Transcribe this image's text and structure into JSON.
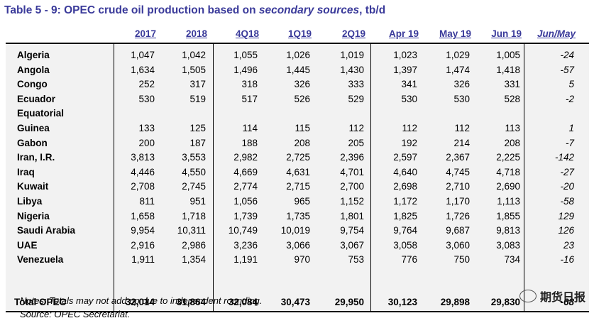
{
  "title": {
    "prefix": "Table 5 - 9: OPEC crude oil production based on ",
    "italic": "secondary sources",
    "suffix": ", tb/d"
  },
  "columns": [
    "2017",
    "2018",
    "4Q18",
    "1Q19",
    "2Q19",
    "Apr 19",
    "May 19",
    "Jun 19",
    "Jun/May"
  ],
  "rows": [
    {
      "name": "Algeria",
      "values": [
        "1,047",
        "1,042",
        "1,055",
        "1,026",
        "1,019",
        "1,023",
        "1,029",
        "1,005",
        "-24"
      ]
    },
    {
      "name": "Angola",
      "values": [
        "1,634",
        "1,505",
        "1,496",
        "1,445",
        "1,430",
        "1,397",
        "1,474",
        "1,418",
        "-57"
      ]
    },
    {
      "name": "Congo",
      "values": [
        "252",
        "317",
        "318",
        "326",
        "333",
        "341",
        "326",
        "331",
        "5"
      ]
    },
    {
      "name": "Ecuador",
      "values": [
        "530",
        "519",
        "517",
        "526",
        "529",
        "530",
        "530",
        "528",
        "-2"
      ]
    },
    {
      "name": "Equatorial",
      "values": [
        "",
        "",
        "",
        "",
        "",
        "",
        "",
        "",
        ""
      ]
    },
    {
      "name": "Guinea",
      "values": [
        "133",
        "125",
        "114",
        "115",
        "112",
        "112",
        "112",
        "113",
        "1"
      ]
    },
    {
      "name": "Gabon",
      "values": [
        "200",
        "187",
        "188",
        "208",
        "205",
        "192",
        "214",
        "208",
        "-7"
      ]
    },
    {
      "name": "Iran, I.R.",
      "values": [
        "3,813",
        "3,553",
        "2,982",
        "2,725",
        "2,396",
        "2,597",
        "2,367",
        "2,225",
        "-142"
      ]
    },
    {
      "name": "Iraq",
      "values": [
        "4,446",
        "4,550",
        "4,669",
        "4,631",
        "4,701",
        "4,640",
        "4,745",
        "4,718",
        "-27"
      ]
    },
    {
      "name": "Kuwait",
      "values": [
        "2,708",
        "2,745",
        "2,774",
        "2,715",
        "2,700",
        "2,698",
        "2,710",
        "2,690",
        "-20"
      ]
    },
    {
      "name": "Libya",
      "values": [
        "811",
        "951",
        "1,056",
        "965",
        "1,152",
        "1,172",
        "1,170",
        "1,113",
        "-58"
      ]
    },
    {
      "name": "Nigeria",
      "values": [
        "1,658",
        "1,718",
        "1,739",
        "1,735",
        "1,801",
        "1,825",
        "1,726",
        "1,855",
        "129"
      ]
    },
    {
      "name": "Saudi Arabia",
      "values": [
        "9,954",
        "10,311",
        "10,749",
        "10,019",
        "9,754",
        "9,764",
        "9,687",
        "9,813",
        "126"
      ]
    },
    {
      "name": "UAE",
      "values": [
        "2,916",
        "2,986",
        "3,236",
        "3,066",
        "3,067",
        "3,058",
        "3,060",
        "3,083",
        "23"
      ]
    },
    {
      "name": "Venezuela",
      "values": [
        "1,911",
        "1,354",
        "1,191",
        "970",
        "753",
        "776",
        "750",
        "734",
        "-16"
      ]
    }
  ],
  "total": {
    "name": "Total  OPEC",
    "values": [
      "32,014",
      "31,864",
      "32,084",
      "30,473",
      "29,950",
      "30,123",
      "29,898",
      "29,830",
      "-68"
    ]
  },
  "notes": [
    "Notes: Totals may not add up due to independent rounding.",
    "Source: OPEC Secretariat."
  ],
  "watermark": {
    "icon": "wechat-icon",
    "text": "期货日报"
  }
}
